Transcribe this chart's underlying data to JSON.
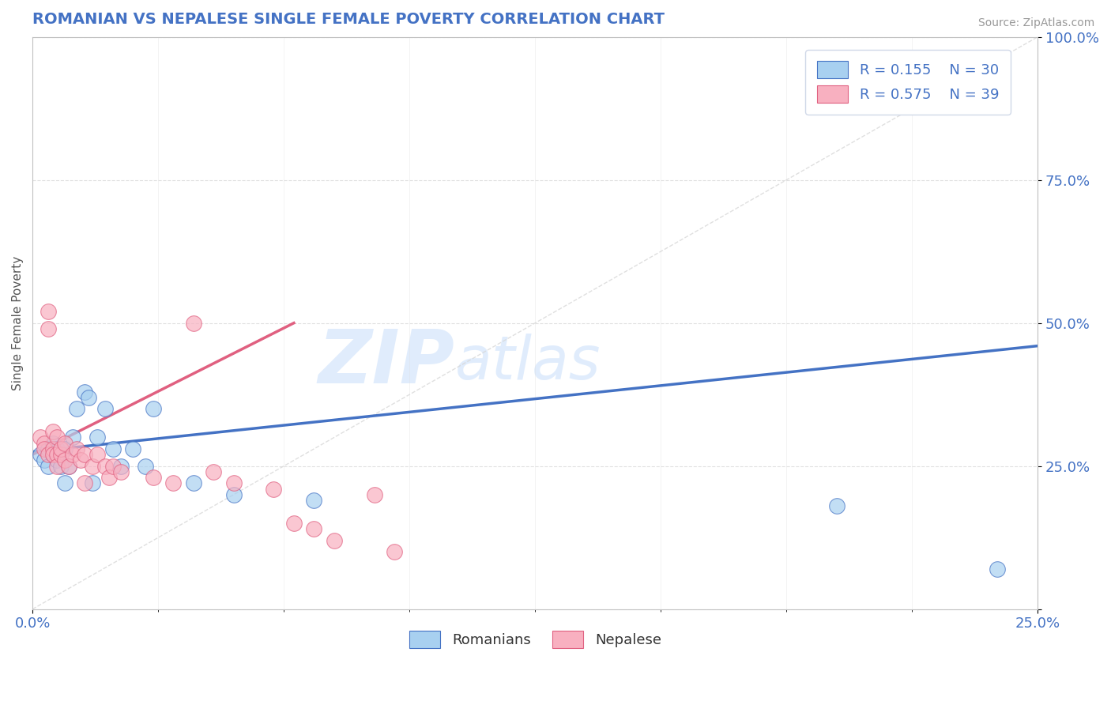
{
  "title": "ROMANIAN VS NEPALESE SINGLE FEMALE POVERTY CORRELATION CHART",
  "source": "Source: ZipAtlas.com",
  "ylabel": "Single Female Poverty",
  "xlim": [
    0.0,
    0.25
  ],
  "ylim": [
    0.0,
    1.0
  ],
  "xticks": [
    0.0,
    0.25
  ],
  "xtick_labels": [
    "0.0%",
    "25.0%"
  ],
  "yticks": [
    0.0,
    0.25,
    0.5,
    0.75,
    1.0
  ],
  "ytick_labels": [
    "",
    "25.0%",
    "50.0%",
    "75.0%",
    "100.0%"
  ],
  "romanian_color": "#A8D0F0",
  "nepalese_color": "#F8B0C0",
  "trend_romanian_color": "#4472C4",
  "trend_nepalese_color": "#E06080",
  "diagonal_color": "#D8D8D8",
  "R_romanian": 0.155,
  "N_romanian": 30,
  "R_nepalese": 0.575,
  "N_nepalese": 39,
  "romanian_x": [
    0.002,
    0.003,
    0.004,
    0.004,
    0.005,
    0.005,
    0.006,
    0.006,
    0.007,
    0.007,
    0.008,
    0.008,
    0.009,
    0.01,
    0.011,
    0.013,
    0.014,
    0.015,
    0.016,
    0.018,
    0.02,
    0.022,
    0.025,
    0.028,
    0.03,
    0.04,
    0.05,
    0.07,
    0.2,
    0.24
  ],
  "romanian_y": [
    0.27,
    0.26,
    0.28,
    0.25,
    0.27,
    0.29,
    0.28,
    0.26,
    0.25,
    0.27,
    0.28,
    0.22,
    0.25,
    0.3,
    0.35,
    0.38,
    0.37,
    0.22,
    0.3,
    0.35,
    0.28,
    0.25,
    0.28,
    0.25,
    0.35,
    0.22,
    0.2,
    0.19,
    0.18,
    0.07
  ],
  "nepalese_x": [
    0.002,
    0.003,
    0.003,
    0.004,
    0.004,
    0.004,
    0.005,
    0.005,
    0.005,
    0.006,
    0.006,
    0.006,
    0.007,
    0.007,
    0.008,
    0.008,
    0.009,
    0.01,
    0.011,
    0.012,
    0.013,
    0.013,
    0.015,
    0.016,
    0.018,
    0.019,
    0.02,
    0.022,
    0.03,
    0.035,
    0.04,
    0.045,
    0.05,
    0.06,
    0.065,
    0.07,
    0.075,
    0.085,
    0.09
  ],
  "nepalese_y": [
    0.3,
    0.29,
    0.28,
    0.52,
    0.49,
    0.27,
    0.31,
    0.28,
    0.27,
    0.3,
    0.27,
    0.25,
    0.27,
    0.28,
    0.29,
    0.26,
    0.25,
    0.27,
    0.28,
    0.26,
    0.27,
    0.22,
    0.25,
    0.27,
    0.25,
    0.23,
    0.25,
    0.24,
    0.23,
    0.22,
    0.5,
    0.24,
    0.22,
    0.21,
    0.15,
    0.14,
    0.12,
    0.2,
    0.1
  ],
  "watermark_zip": "ZIP",
  "watermark_atlas": "atlas",
  "background_color": "#FFFFFF",
  "grid_color": "#DDDDDD",
  "title_color": "#4472C4",
  "tick_color": "#4472C4",
  "legend_color": "#4472C4",
  "source_color": "#999999"
}
